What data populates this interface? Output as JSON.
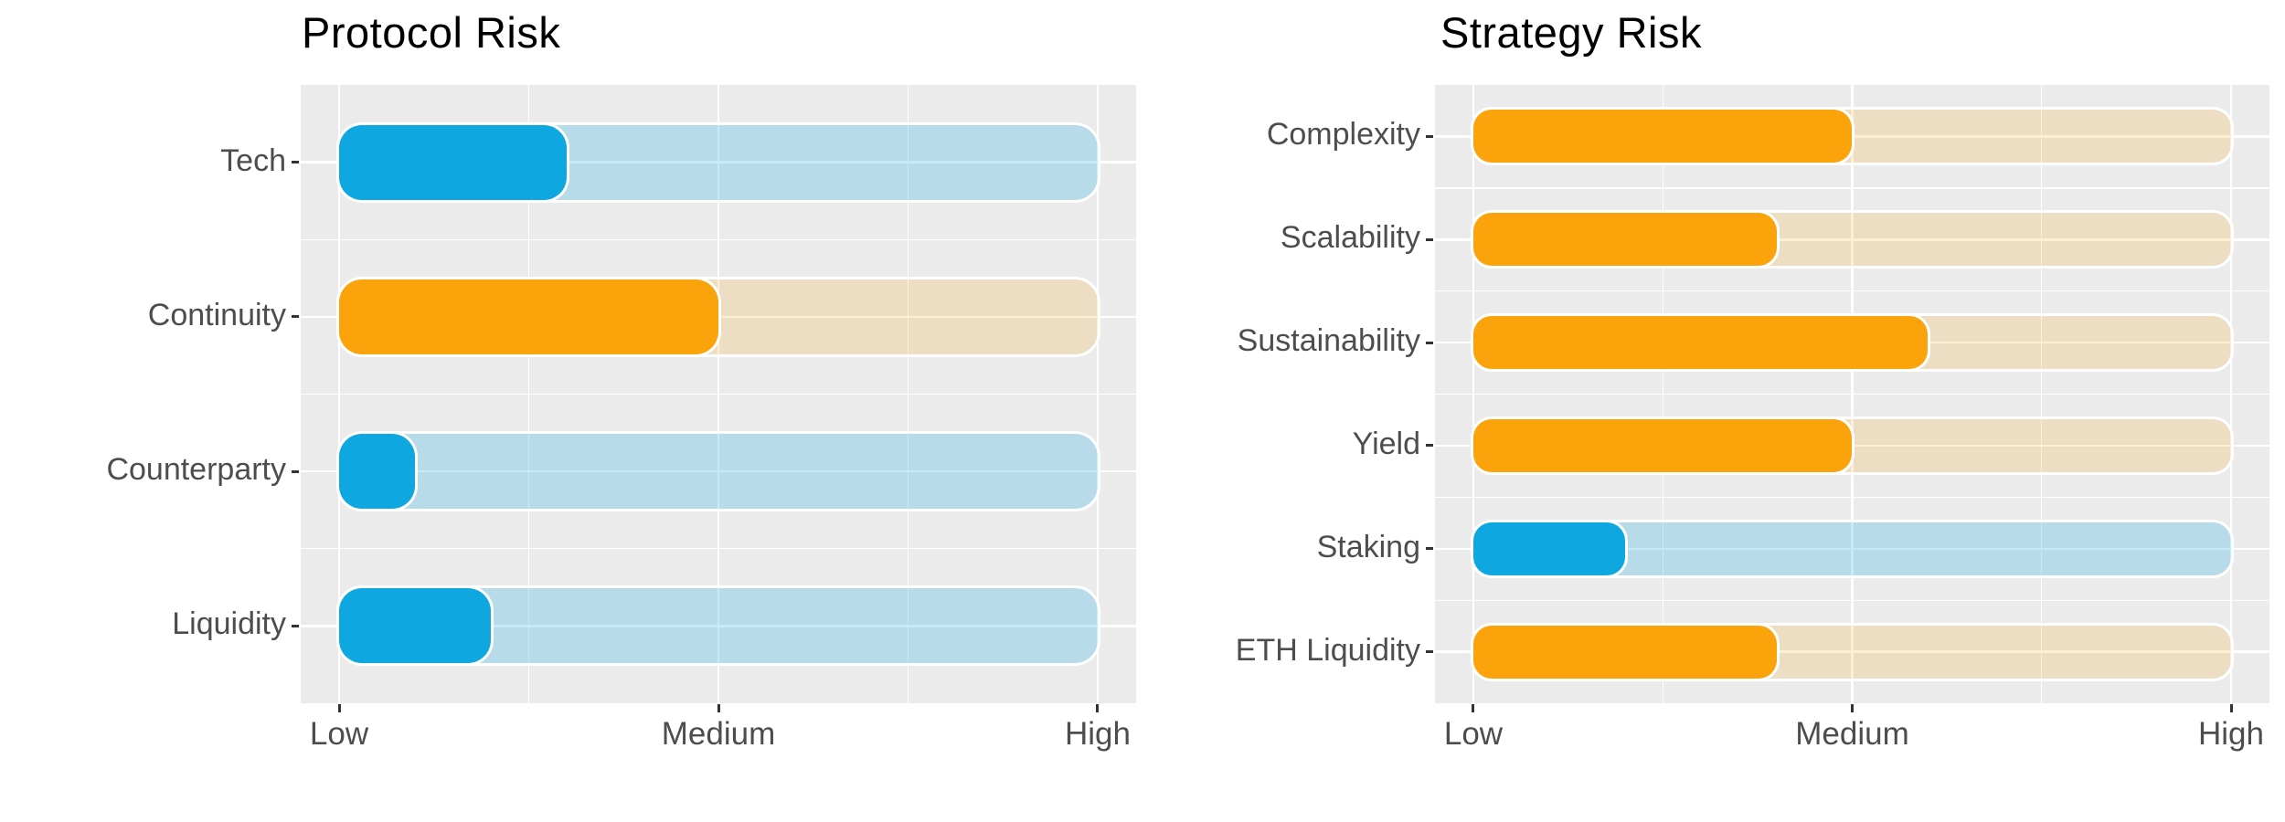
{
  "chart_data": [
    {
      "type": "bar",
      "orientation": "horizontal",
      "title": "Protocol Risk",
      "categories": [
        "Tech",
        "Continuity",
        "Counterparty",
        "Liquidity"
      ],
      "values": [
        3,
        5,
        1,
        2
      ],
      "value_scale": {
        "min": 0,
        "max": 10,
        "track_full": 10
      },
      "bar_colors": [
        "blue",
        "orange",
        "blue",
        "blue"
      ],
      "x_tick_labels": [
        "Low",
        "Medium",
        "High"
      ],
      "x_tick_values": [
        0,
        5,
        10
      ],
      "grid": true,
      "legend": false,
      "bar_style": "rounded track + rounded fill"
    },
    {
      "type": "bar",
      "orientation": "horizontal",
      "title": "Strategy Risk",
      "categories": [
        "Complexity",
        "Scalability",
        "Sustainability",
        "Yield",
        "Staking",
        "ETH Liquidity"
      ],
      "values": [
        5,
        4,
        6,
        5,
        2,
        4
      ],
      "value_scale": {
        "min": 0,
        "max": 10,
        "track_full": 10
      },
      "bar_colors": [
        "orange",
        "orange",
        "orange",
        "orange",
        "blue",
        "orange"
      ],
      "x_tick_labels": [
        "Low",
        "Medium",
        "High"
      ],
      "x_tick_values": [
        0,
        5,
        10
      ],
      "grid": true,
      "legend": false,
      "bar_style": "rounded track + rounded fill"
    }
  ],
  "palette": {
    "blue": "#0FA7E0",
    "orange": "#FBA30B",
    "blue_track": "rgba(15,167,224,0.24)",
    "orange_track": "rgba(251,163,11,0.18)",
    "panel_bg": "#EBEBEB",
    "grid": "#FFFFFF",
    "axis_text": "#4D4D4D",
    "title_text": "#000000",
    "tick_mark": "#333333"
  }
}
